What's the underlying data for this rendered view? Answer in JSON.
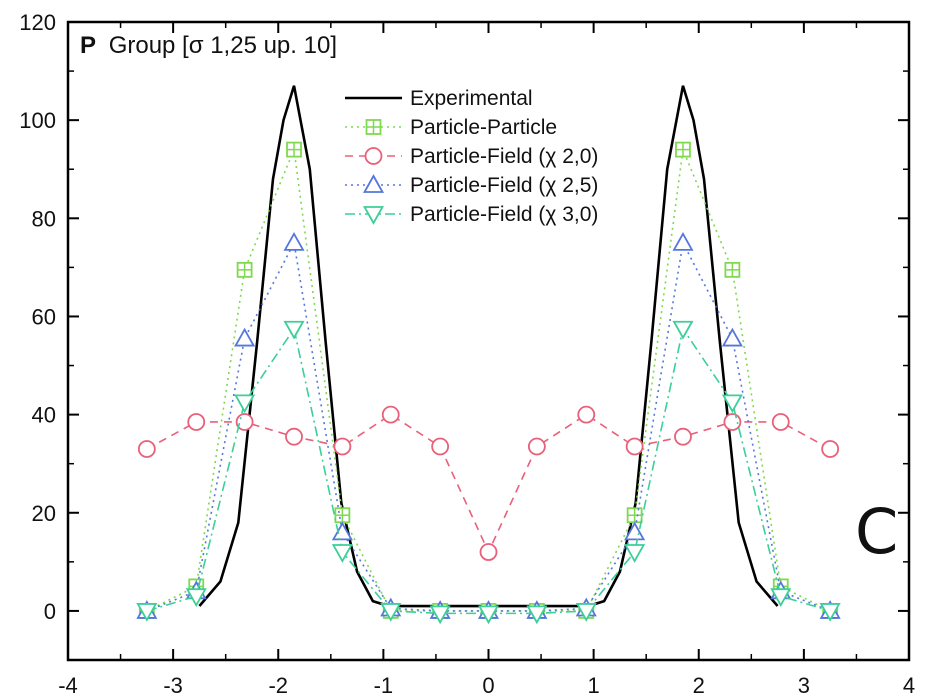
{
  "chart_data": {
    "type": "line",
    "title_prefix": "P",
    "title": "Group [σ 1,25 up. 10]",
    "panel_label": "C",
    "xlim": [
      -4,
      4
    ],
    "ylim": [
      -10,
      120
    ],
    "x_ticks": [
      -4,
      -3,
      -2,
      -1,
      0,
      1,
      2,
      3,
      4
    ],
    "x_tick_labels": [
      "-4",
      "-3",
      "-2",
      "-1",
      "0",
      "1",
      "2",
      "3",
      "4"
    ],
    "y_ticks": [
      0,
      20,
      40,
      60,
      80,
      100,
      120
    ],
    "y_tick_labels": [
      "0",
      "20",
      "40",
      "60",
      "80",
      "100",
      "120"
    ],
    "legend_position": "top-center",
    "grid": false,
    "series": [
      {
        "name": "Experimental",
        "color": "#000000",
        "style": "solid",
        "marker": "none",
        "x": [
          -2.75,
          -2.55,
          -2.38,
          -2.2,
          -2.05,
          -1.95,
          -1.85,
          -1.7,
          -1.55,
          -1.4,
          -1.25,
          -1.1,
          -0.95,
          0,
          0.95,
          1.1,
          1.25,
          1.4,
          1.55,
          1.7,
          1.85,
          1.95,
          2.05,
          2.2,
          2.38,
          2.55,
          2.75
        ],
        "y": [
          1,
          6,
          18,
          55,
          88,
          100,
          107,
          90,
          55,
          22,
          8,
          2,
          1,
          1,
          1,
          2,
          8,
          22,
          55,
          90,
          107,
          100,
          88,
          55,
          18,
          6,
          1
        ]
      },
      {
        "name": "Particle-Particle",
        "color": "#7fd94f",
        "style": "dotted",
        "marker": "square-plus",
        "x": [
          -3.25,
          -2.78,
          -2.32,
          -1.85,
          -1.39,
          -0.93,
          -0.46,
          0,
          0.46,
          0.93,
          1.39,
          1.85,
          2.32,
          2.78,
          3.25
        ],
        "y": [
          0,
          5,
          69.5,
          94,
          19.5,
          0,
          0,
          0,
          0,
          0,
          19.5,
          94,
          69.5,
          5,
          0
        ]
      },
      {
        "name": "Particle-Field (χ 2,0)",
        "color": "#e8607a",
        "style": "dashed",
        "marker": "circle",
        "x": [
          -3.25,
          -2.78,
          -2.32,
          -1.85,
          -1.39,
          -0.93,
          -0.46,
          0,
          0.46,
          0.93,
          1.39,
          1.85,
          2.32,
          2.78,
          3.25
        ],
        "y": [
          33,
          38.5,
          38.5,
          35.5,
          33.5,
          40,
          33.5,
          12,
          33.5,
          40,
          33.5,
          35.5,
          38.5,
          38.5,
          33
        ]
      },
      {
        "name": "Particle-Field (χ 2,5)",
        "color": "#5577dd",
        "style": "dotted",
        "marker": "triangle-up",
        "x": [
          -3.25,
          -2.78,
          -2.32,
          -1.85,
          -1.39,
          -0.93,
          -0.46,
          0,
          0.46,
          0.93,
          1.39,
          1.85,
          2.32,
          2.78,
          3.25
        ],
        "y": [
          0,
          4,
          55.5,
          75,
          16,
          0.5,
          0,
          0,
          0,
          0.5,
          16,
          75,
          55.5,
          4,
          0
        ]
      },
      {
        "name": "Particle-Field (χ 3,0)",
        "color": "#3ccf98",
        "style": "dashdot",
        "marker": "triangle-down",
        "x": [
          -3.25,
          -2.78,
          -2.32,
          -1.85,
          -1.39,
          -0.93,
          -0.46,
          0,
          0.46,
          0.93,
          1.39,
          1.85,
          2.32,
          2.78,
          3.25
        ],
        "y": [
          0,
          3,
          42.5,
          57.5,
          12,
          0,
          -0.5,
          -0.5,
          -0.5,
          0,
          12,
          57.5,
          42.5,
          3,
          0
        ]
      }
    ]
  }
}
